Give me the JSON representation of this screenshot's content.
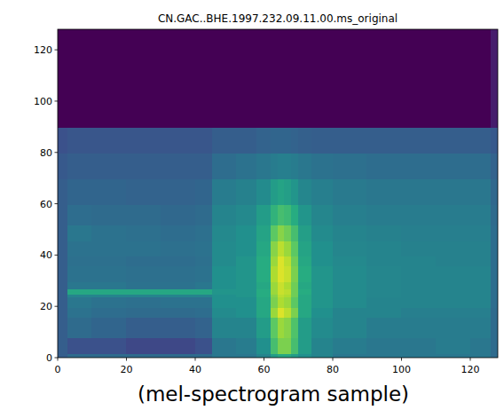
{
  "chart_data": {
    "type": "heatmap",
    "title": "CN.GAC..BHE.1997.232.09.11.00.ms_original",
    "caption": "(mel-spectrogram sample)",
    "xlim": [
      0,
      128
    ],
    "ylim": [
      0,
      128
    ],
    "xticks": [
      0,
      20,
      40,
      60,
      80,
      100,
      120
    ],
    "yticks": [
      0,
      20,
      40,
      60,
      80,
      100,
      120
    ],
    "color_range": [
      0,
      1
    ],
    "x_edges": [
      0,
      3,
      10,
      20,
      30,
      40,
      45,
      52,
      58,
      62,
      64,
      66,
      68,
      70,
      74,
      80,
      90,
      100,
      110,
      120,
      126,
      128
    ],
    "y_edges": [
      0,
      2,
      8,
      16,
      20,
      24,
      25,
      27,
      30,
      36,
      40,
      46,
      52,
      60,
      70,
      80,
      90,
      128
    ],
    "cells": [
      [
        0.3,
        0.35,
        0.35,
        0.35,
        0.35,
        0.35,
        0.4,
        0.4,
        0.45,
        0.55,
        0.6,
        0.6,
        0.55,
        0.5,
        0.45,
        0.4,
        0.4,
        0.4,
        0.4,
        0.4,
        0.35
      ],
      [
        0.3,
        0.25,
        0.25,
        0.22,
        0.22,
        0.25,
        0.4,
        0.42,
        0.5,
        0.7,
        0.8,
        0.8,
        0.7,
        0.55,
        0.45,
        0.42,
        0.4,
        0.4,
        0.42,
        0.4,
        0.35
      ],
      [
        0.3,
        0.35,
        0.33,
        0.3,
        0.3,
        0.32,
        0.45,
        0.45,
        0.55,
        0.75,
        0.85,
        0.82,
        0.72,
        0.55,
        0.48,
        0.45,
        0.42,
        0.42,
        0.42,
        0.42,
        0.35
      ],
      [
        0.3,
        0.38,
        0.36,
        0.35,
        0.35,
        0.36,
        0.48,
        0.5,
        0.6,
        0.85,
        0.95,
        0.9,
        0.8,
        0.6,
        0.5,
        0.45,
        0.45,
        0.43,
        0.43,
        0.43,
        0.35
      ],
      [
        0.3,
        0.4,
        0.38,
        0.37,
        0.38,
        0.38,
        0.5,
        0.5,
        0.6,
        0.8,
        0.88,
        0.85,
        0.75,
        0.6,
        0.52,
        0.48,
        0.45,
        0.45,
        0.45,
        0.45,
        0.36
      ],
      [
        0.3,
        0.45,
        0.45,
        0.45,
        0.45,
        0.45,
        0.5,
        0.52,
        0.62,
        0.82,
        0.9,
        0.88,
        0.78,
        0.6,
        0.52,
        0.48,
        0.46,
        0.45,
        0.45,
        0.45,
        0.36
      ],
      [
        0.3,
        0.6,
        0.6,
        0.6,
        0.6,
        0.6,
        0.52,
        0.52,
        0.62,
        0.85,
        0.92,
        0.9,
        0.78,
        0.62,
        0.52,
        0.48,
        0.46,
        0.45,
        0.45,
        0.45,
        0.36
      ],
      [
        0.3,
        0.4,
        0.4,
        0.38,
        0.38,
        0.4,
        0.5,
        0.52,
        0.6,
        0.85,
        0.92,
        0.88,
        0.78,
        0.6,
        0.52,
        0.48,
        0.46,
        0.45,
        0.45,
        0.45,
        0.36
      ],
      [
        0.3,
        0.38,
        0.38,
        0.37,
        0.37,
        0.38,
        0.5,
        0.52,
        0.62,
        0.88,
        0.95,
        0.92,
        0.8,
        0.62,
        0.52,
        0.48,
        0.46,
        0.45,
        0.45,
        0.45,
        0.36
      ],
      [
        0.3,
        0.37,
        0.37,
        0.36,
        0.36,
        0.37,
        0.48,
        0.52,
        0.62,
        0.85,
        0.95,
        0.9,
        0.78,
        0.6,
        0.5,
        0.47,
        0.45,
        0.45,
        0.44,
        0.44,
        0.36
      ],
      [
        0.3,
        0.38,
        0.38,
        0.38,
        0.37,
        0.38,
        0.48,
        0.5,
        0.6,
        0.82,
        0.9,
        0.85,
        0.75,
        0.58,
        0.5,
        0.46,
        0.45,
        0.44,
        0.44,
        0.44,
        0.36
      ],
      [
        0.3,
        0.4,
        0.38,
        0.37,
        0.36,
        0.37,
        0.47,
        0.5,
        0.58,
        0.75,
        0.82,
        0.78,
        0.7,
        0.56,
        0.48,
        0.45,
        0.44,
        0.43,
        0.43,
        0.43,
        0.36
      ],
      [
        0.3,
        0.36,
        0.35,
        0.35,
        0.34,
        0.35,
        0.45,
        0.47,
        0.55,
        0.65,
        0.7,
        0.68,
        0.62,
        0.52,
        0.46,
        0.43,
        0.42,
        0.42,
        0.42,
        0.42,
        0.35
      ],
      [
        0.3,
        0.33,
        0.33,
        0.32,
        0.32,
        0.33,
        0.42,
        0.44,
        0.48,
        0.55,
        0.58,
        0.56,
        0.52,
        0.46,
        0.43,
        0.41,
        0.4,
        0.4,
        0.4,
        0.4,
        0.34
      ],
      [
        0.28,
        0.3,
        0.3,
        0.3,
        0.3,
        0.3,
        0.36,
        0.38,
        0.4,
        0.42,
        0.43,
        0.43,
        0.42,
        0.4,
        0.38,
        0.37,
        0.36,
        0.36,
        0.36,
        0.36,
        0.32
      ],
      [
        0.25,
        0.27,
        0.27,
        0.27,
        0.27,
        0.27,
        0.3,
        0.3,
        0.32,
        0.33,
        0.33,
        0.33,
        0.32,
        0.31,
        0.3,
        0.3,
        0.3,
        0.3,
        0.3,
        0.3,
        0.28
      ],
      [
        0,
        0,
        0,
        0,
        0,
        0,
        0,
        0,
        0,
        0,
        0,
        0,
        0,
        0,
        0,
        0,
        0,
        0,
        0,
        0,
        0.08
      ]
    ]
  }
}
